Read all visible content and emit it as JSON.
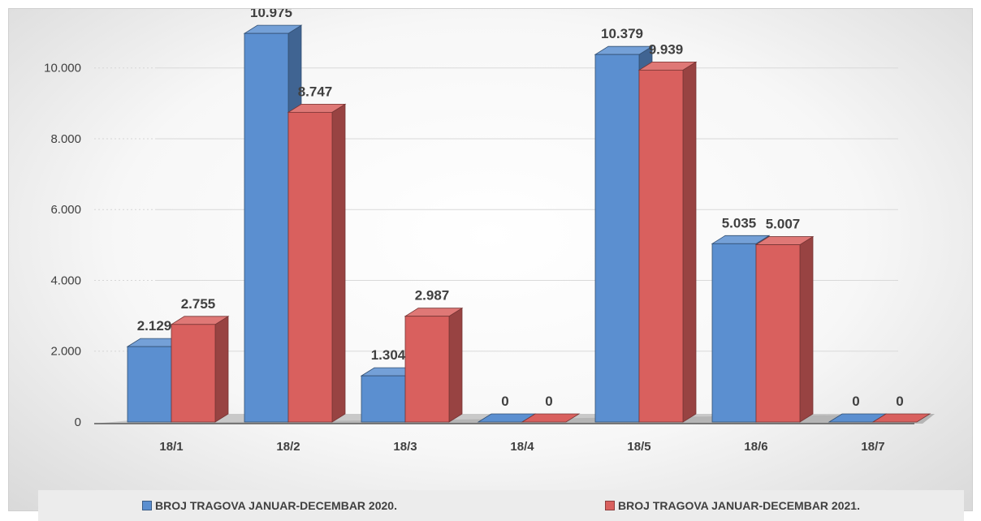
{
  "chart_data": {
    "type": "bar",
    "categories": [
      "18/1",
      "18/2",
      "18/3",
      "18/4",
      "18/5",
      "18/6",
      "18/7"
    ],
    "series": [
      {
        "name": "BROJ TRAGOVA JANUAR-DECEMBAR 2020.",
        "values": [
          2129,
          10975,
          1304,
          0,
          10379,
          5035,
          0
        ],
        "labels": [
          "2.129",
          "10.975",
          "1.304",
          "0",
          "10.379",
          "5.035",
          "0"
        ],
        "color": "#5b8fd0"
      },
      {
        "name": "BROJ TRAGOVA JANUAR-DECEMBAR 2021.",
        "values": [
          2755,
          8747,
          2987,
          0,
          9939,
          5007,
          0
        ],
        "labels": [
          "2.755",
          "8.747",
          "2.987",
          "0",
          "9.939",
          "5.007",
          "0"
        ],
        "color": "#d9605e"
      }
    ],
    "yticks": [
      0,
      2000,
      4000,
      6000,
      8000,
      10000
    ],
    "ytick_labels": [
      "0",
      "2.000",
      "4.000",
      "6.000",
      "8.000",
      "10.000"
    ],
    "ylim": [
      0,
      10000
    ],
    "grid": true,
    "legend_position": "bottom",
    "style": "3d-column",
    "title": "",
    "xlabel": "",
    "ylabel": ""
  },
  "legend": {
    "items": [
      {
        "label": "BROJ TRAGOVA JANUAR-DECEMBAR 2020.",
        "color": "#5b8fd0"
      },
      {
        "label": "BROJ TRAGOVA JANUAR-DECEMBAR 2021.",
        "color": "#d9605e"
      }
    ]
  }
}
